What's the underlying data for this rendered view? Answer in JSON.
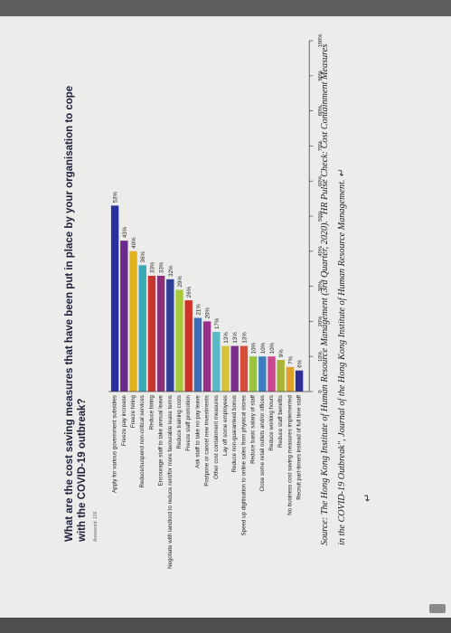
{
  "chart_data": {
    "type": "bar",
    "orientation": "horizontal",
    "title": "What are the cost saving measures that have been put in place by your organisation to cope with the COVID-19 outbreak?",
    "subtitle": "Answered: 126",
    "categories": [
      "Apply for various government subsidies",
      "Freeze pay increase",
      "Freeze hiring",
      "Reduce/suspend non-critical services",
      "Reduce hiring",
      "Encourage staff to take annual leave",
      "Negotiate with landlord to reduce rent/for more favourable lease terms",
      "Reduce training costs",
      "Freeze staff promotion",
      "Ask staff to take no pay leave",
      "Postpone or cancel new investments",
      "Other cost containment measures",
      "Lay off some employees",
      "Reduce non-guaranteed bonus",
      "Speed up digitisation to online sales from physical stores",
      "Reduce basic salary of staff",
      "Close some retail outlets and/or offices",
      "Reduce working hours",
      "Reduce staff benefits",
      "No business cost saving measures implemented",
      "Recruit part-timers instead of full time staff"
    ],
    "values": [
      53,
      43,
      40,
      36,
      33,
      33,
      32,
      29,
      26,
      21,
      20,
      17,
      13,
      13,
      13,
      10,
      10,
      10,
      9,
      7,
      6
    ],
    "value_labels": [
      "53%",
      "43%",
      "40%",
      "36%",
      "33%",
      "33%",
      "32%",
      "29%",
      "26%",
      "21%",
      "20%",
      "17%",
      "13%",
      "13%",
      "13%",
      "10%",
      "10%",
      "10%",
      "9%",
      "7%",
      "6%"
    ],
    "colors": [
      "#2b2f9e",
      "#6a2a8c",
      "#e2b21c",
      "#3aa9b5",
      "#c9362f",
      "#8c2f7a",
      "#2d3f96",
      "#a9c93a",
      "#d1322a",
      "#3c6db5",
      "#9a2f88",
      "#5bb8c6",
      "#d6c23a",
      "#7a2f8c",
      "#d74d3a",
      "#9ac43e",
      "#3a7ec0",
      "#c94590",
      "#a8b435",
      "#e0a02a",
      "#2f2f93"
    ],
    "xlim": [
      0,
      100
    ],
    "x_ticks": [
      "0",
      "10%",
      "20%",
      "30%",
      "40%",
      "50%",
      "60%",
      "70%",
      "80%",
      "90%",
      "100%"
    ],
    "grid": false
  },
  "source": {
    "text": "Source: The Hong Kong Institute of Human Resource Management (3rd Quarter, 2020). \"HR Pulse Check: Cost Containment Measures in the COVID-19 Outbreak\", Journal of the Hong Kong Institute of Human Resource Management. ↵"
  },
  "marks": {
    "return_glyph": "↵"
  }
}
